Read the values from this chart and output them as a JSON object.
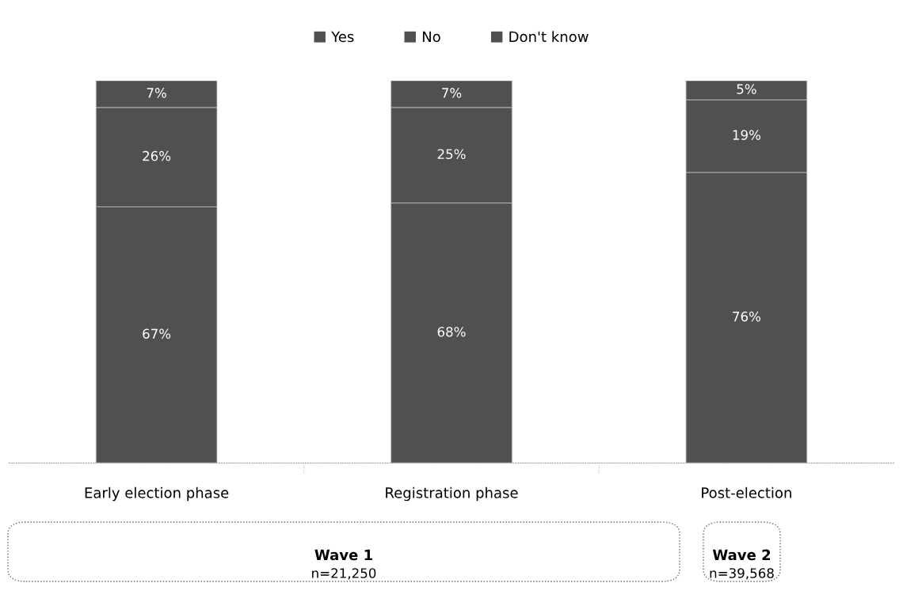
{
  "chart_data": {
    "type": "bar",
    "stacked": true,
    "categories": [
      "Early election phase",
      "Registration phase",
      "Post-election"
    ],
    "series": [
      {
        "name": "Yes",
        "color": "#505050",
        "values": [
          67,
          68,
          76
        ],
        "value_labels": [
          "67%",
          "68%",
          "76%"
        ]
      },
      {
        "name": "No",
        "color": "#505050",
        "values": [
          26,
          25,
          19
        ],
        "value_labels": [
          "26%",
          "25%",
          "19%"
        ]
      },
      {
        "name": "Don't know",
        "color": "#505050",
        "values": [
          7,
          7,
          5
        ],
        "value_labels": [
          "7%",
          "7%",
          "5%"
        ]
      }
    ],
    "legend": "top",
    "grid": false,
    "annotations": [
      "Wave 1",
      "n=21,250",
      "Wave 2",
      "n=39,568"
    ]
  }
}
